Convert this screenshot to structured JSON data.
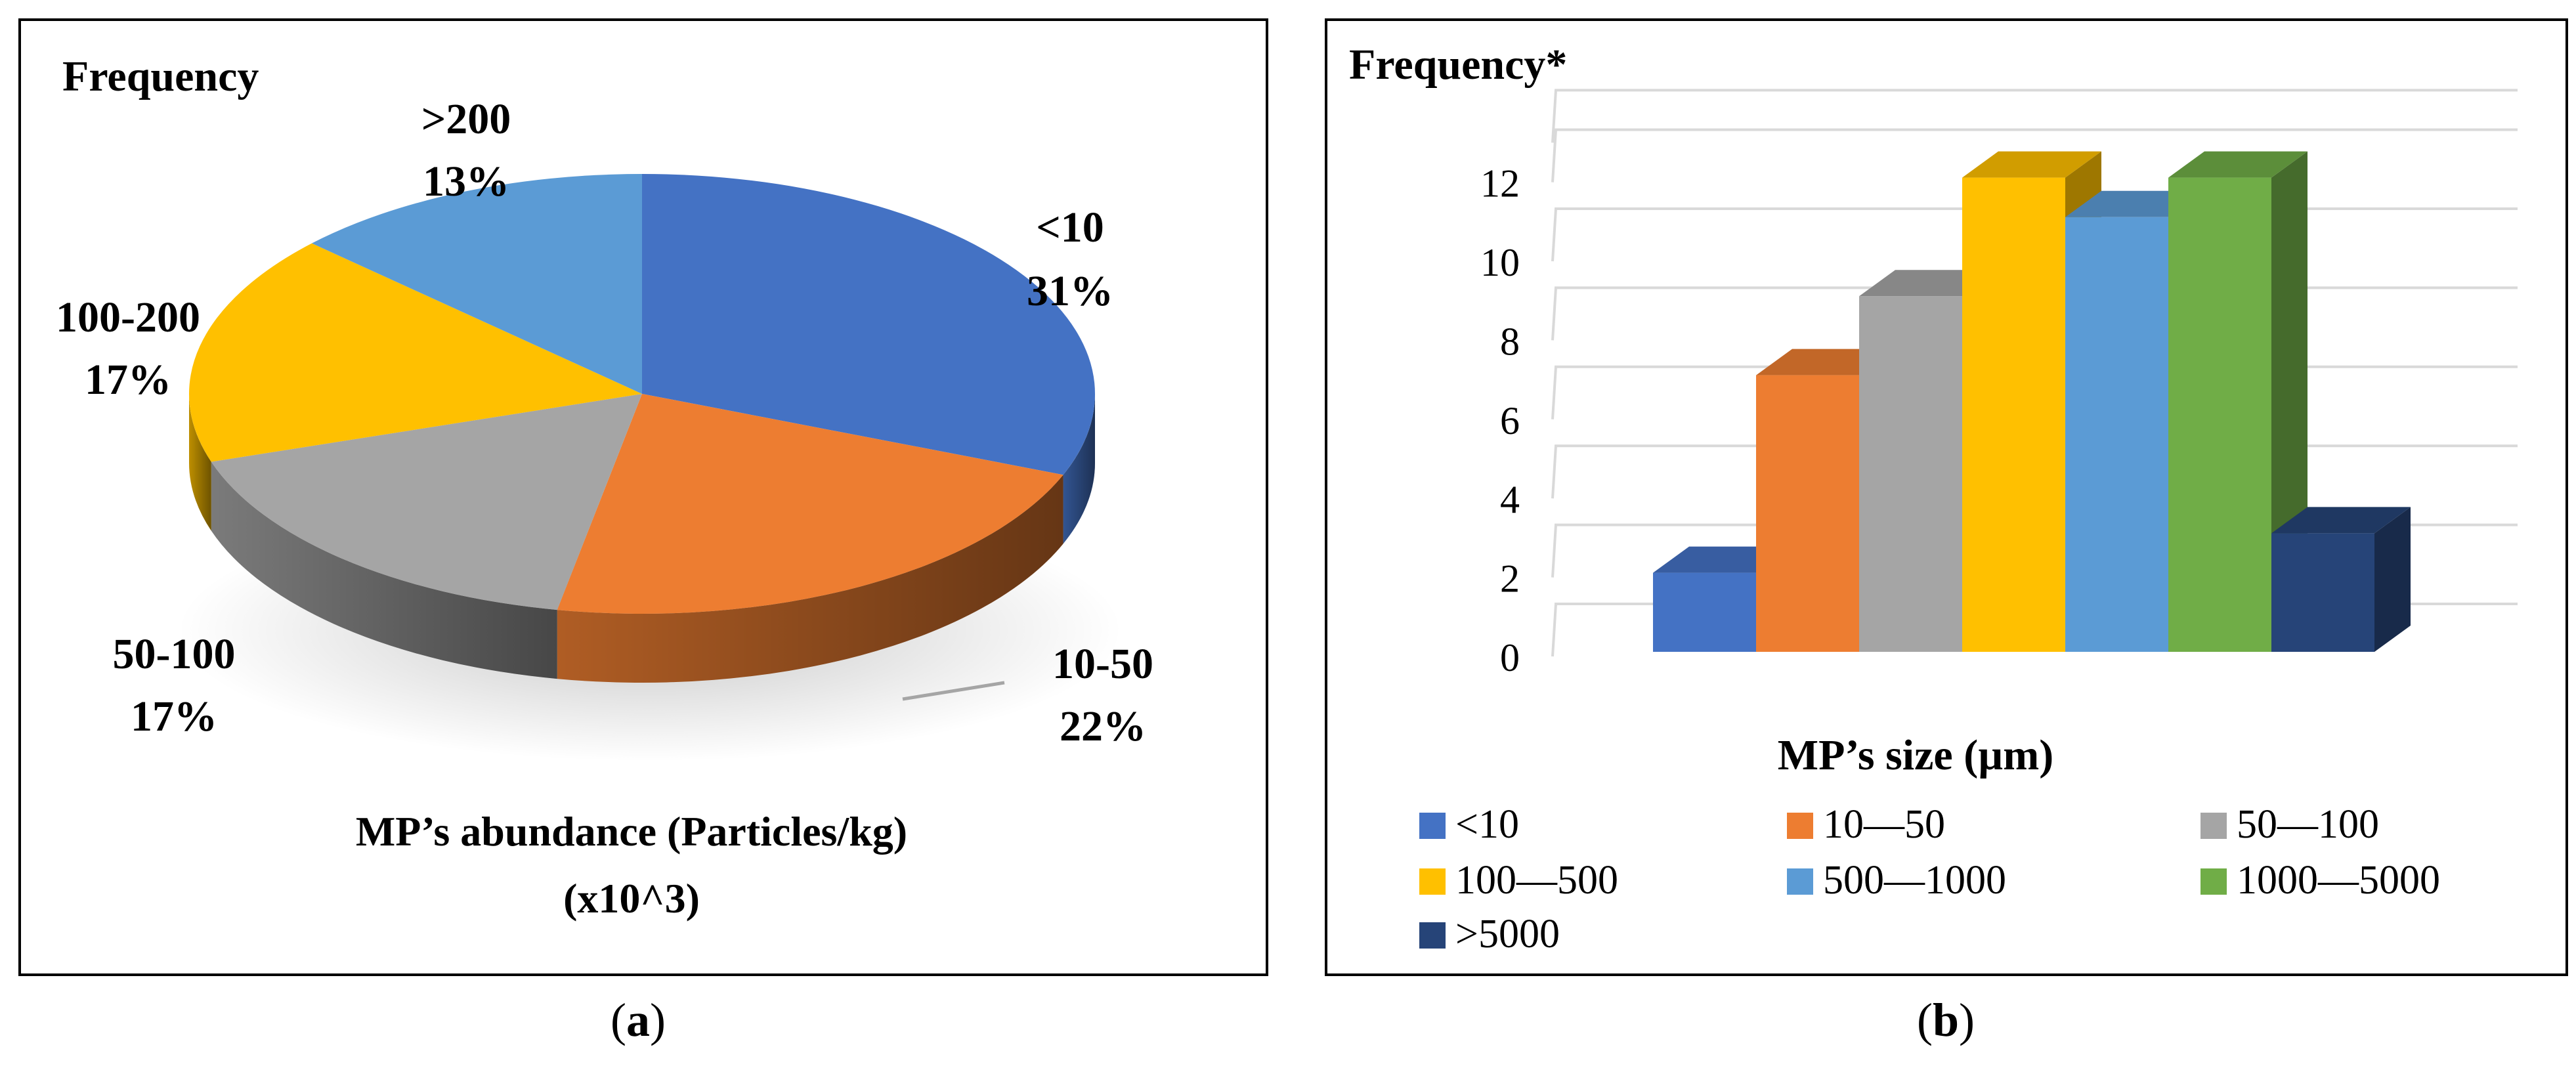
{
  "chart_data": [
    {
      "type": "pie",
      "panel_label": "a",
      "title": "Frequency",
      "caption_line1": "MP’s abundance (Particles/kg)",
      "caption_line2": "(x10^3)",
      "slices": [
        {
          "label": "<10",
          "pct_label": "31%",
          "value": 31,
          "color": "#4472C4"
        },
        {
          "label": "10-50",
          "pct_label": "22%",
          "value": 22,
          "color": "#ED7D31"
        },
        {
          "label": "50-100",
          "pct_label": "17%",
          "value": 17,
          "color": "#A5A5A5"
        },
        {
          "label": "100-200",
          "pct_label": "17%",
          "value": 17,
          "color": "#FFC000"
        },
        {
          "label": ">200",
          "pct_label": "13%",
          "value": 13,
          "color": "#5B9BD5"
        }
      ]
    },
    {
      "type": "bar",
      "panel_label": "b",
      "title": "Frequency*",
      "xlabel": "MP’s size (µm)",
      "ylim": [
        0,
        13
      ],
      "y_ticks": [
        "0",
        "2",
        "4",
        "6",
        "8",
        "10",
        "12"
      ],
      "categories": [
        "<10",
        "10—50",
        "50—100",
        "100—500",
        "500—1000",
        "1000—5000",
        ">5000"
      ],
      "values": [
        2,
        7,
        9,
        12,
        11,
        12,
        3
      ],
      "colors": [
        "#4472C4",
        "#ED7D31",
        "#A5A5A5",
        "#FFC000",
        "#5B9BD5",
        "#70AD47",
        "#264478"
      ],
      "legend": [
        {
          "label": "<10",
          "color": "#4472C4"
        },
        {
          "label": "10—50",
          "color": "#ED7D31"
        },
        {
          "label": "50—100",
          "color": "#A5A5A5"
        },
        {
          "label": "100—500",
          "color": "#FFC000"
        },
        {
          "label": "500—1000",
          "color": "#5B9BD5"
        },
        {
          "label": "1000—5000",
          "color": "#70AD47"
        },
        {
          "label": ">5000",
          "color": "#264478"
        }
      ]
    }
  ]
}
